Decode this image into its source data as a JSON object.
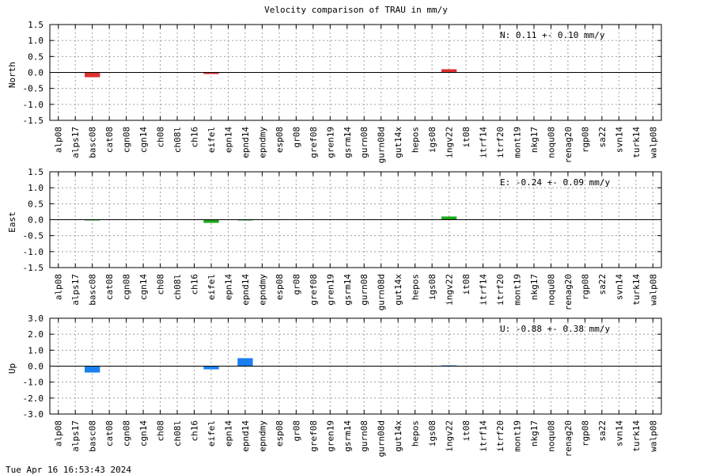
{
  "page": {
    "title": "Velocity comparison of TRAU in mm/y",
    "timestamp": "Tue Apr 16 16:53:43 2024"
  },
  "chart_data": [
    {
      "type": "bar",
      "panel": "north",
      "ylabel": "North",
      "ylim": [
        -1.5,
        1.5
      ],
      "yticks": [
        -1.5,
        -1.0,
        -0.5,
        0.0,
        0.5,
        1.0,
        1.5
      ],
      "grid": true,
      "annotation": "N:   0.11 +-  0.10 mm/y",
      "color": "#e03030",
      "categories": [
        "alp08",
        "alps17",
        "basc08",
        "cat08",
        "cgn08",
        "cgn14",
        "ch08",
        "ch08l",
        "ch16",
        "eifel",
        "epn14",
        "epnd14",
        "epndmy",
        "esp08",
        "gr08",
        "gref08",
        "gren19",
        "gsrm14",
        "gurn08",
        "gurn08d",
        "gut14x",
        "hepos",
        "igs08",
        "ingv22",
        "it08",
        "itrf14",
        "itrf20",
        "mont19",
        "nkg17",
        "noqu08",
        "renag20",
        "rgp08",
        "sa22",
        "svn14",
        "turk14",
        "walp08"
      ],
      "values": [
        0,
        0,
        -0.15,
        0,
        0,
        0,
        0,
        0,
        0,
        -0.05,
        0,
        0,
        0,
        0,
        0,
        0,
        0,
        0,
        0,
        0,
        0,
        0,
        0,
        0.1,
        0,
        0,
        0,
        0,
        0,
        0,
        0,
        0,
        0,
        0,
        0,
        0
      ]
    },
    {
      "type": "bar",
      "panel": "east",
      "ylabel": "East",
      "ylim": [
        -1.5,
        1.5
      ],
      "yticks": [
        -1.5,
        -1.0,
        -0.5,
        0.0,
        0.5,
        1.0,
        1.5
      ],
      "grid": true,
      "annotation": "E:  -0.24 +-  0.09 mm/y",
      "color": "#1aaa1a",
      "categories": [
        "alp08",
        "alps17",
        "basc08",
        "cat08",
        "cgn08",
        "cgn14",
        "ch08",
        "ch08l",
        "ch16",
        "eifel",
        "epn14",
        "epnd14",
        "epndmy",
        "esp08",
        "gr08",
        "gref08",
        "gren19",
        "gsrm14",
        "gurn08",
        "gurn08d",
        "gut14x",
        "hepos",
        "igs08",
        "ingv22",
        "it08",
        "itrf14",
        "itrf20",
        "mont19",
        "nkg17",
        "noqu08",
        "renag20",
        "rgp08",
        "sa22",
        "svn14",
        "turk14",
        "walp08"
      ],
      "values": [
        0,
        0,
        -0.02,
        0,
        0,
        0,
        0,
        0,
        0,
        -0.1,
        0,
        -0.02,
        0,
        0,
        0,
        0,
        0,
        0,
        0,
        0,
        0,
        0,
        0,
        0.1,
        0,
        0,
        0,
        0,
        0,
        0,
        0,
        0,
        0,
        0,
        0,
        0
      ]
    },
    {
      "type": "bar",
      "panel": "up",
      "ylabel": "Up",
      "ylim": [
        -3.0,
        3.0
      ],
      "yticks": [
        -3.0,
        -2.0,
        -1.0,
        0.0,
        1.0,
        2.0,
        3.0
      ],
      "grid": true,
      "annotation": "U:  -0.88 +-  0.38 mm/y",
      "color": "#1a80f0",
      "categories": [
        "alp08",
        "alps17",
        "basc08",
        "cat08",
        "cgn08",
        "cgn14",
        "ch08",
        "ch08l",
        "ch16",
        "eifel",
        "epn14",
        "epnd14",
        "epndmy",
        "esp08",
        "gr08",
        "gref08",
        "gren19",
        "gsrm14",
        "gurn08",
        "gurn08d",
        "gut14x",
        "hepos",
        "igs08",
        "ingv22",
        "it08",
        "itrf14",
        "itrf20",
        "mont19",
        "nkg17",
        "noqu08",
        "renag20",
        "rgp08",
        "sa22",
        "svn14",
        "turk14",
        "walp08"
      ],
      "values": [
        0,
        0,
        -0.4,
        0,
        0,
        0,
        0,
        0,
        0,
        -0.2,
        0,
        0.5,
        0,
        0,
        0,
        0,
        0,
        0,
        0,
        0,
        0,
        0,
        0,
        0.05,
        0,
        0,
        0,
        0,
        0,
        0,
        0,
        0,
        0,
        0,
        0,
        0
      ]
    }
  ]
}
